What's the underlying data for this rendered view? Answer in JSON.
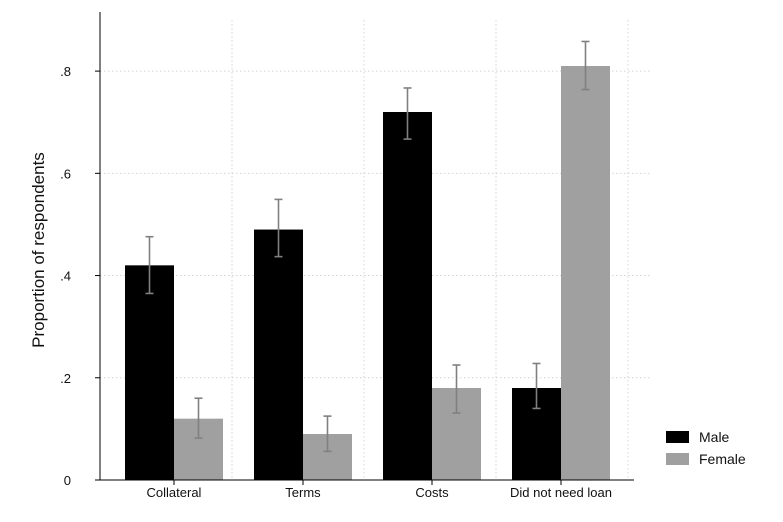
{
  "chart_data": {
    "type": "bar",
    "title": "",
    "xlabel": "",
    "ylabel": "Proportion of respondents",
    "categories": [
      "Collateral",
      "Terms",
      "Costs",
      "Did not need loan"
    ],
    "series": [
      {
        "name": "Male",
        "color": "#000000",
        "values": [
          0.42,
          0.49,
          0.72,
          0.18
        ],
        "ci_low": [
          0.365,
          0.437,
          0.667,
          0.14
        ],
        "ci_high": [
          0.476,
          0.549,
          0.767,
          0.228
        ]
      },
      {
        "name": "Female",
        "color": "#a0a0a0",
        "values": [
          0.12,
          0.09,
          0.18,
          0.81
        ],
        "ci_low": [
          0.082,
          0.056,
          0.131,
          0.764
        ],
        "ci_high": [
          0.16,
          0.125,
          0.225,
          0.858
        ]
      }
    ],
    "ylim": [
      0,
      0.9
    ],
    "yticks": [
      0,
      0.2,
      0.4,
      0.6,
      0.8
    ],
    "ytick_labels": [
      "0",
      ".2",
      ".4",
      ".6",
      ".8"
    ],
    "grid": true,
    "error_bar_color": "#808080",
    "legend_position": "right"
  }
}
